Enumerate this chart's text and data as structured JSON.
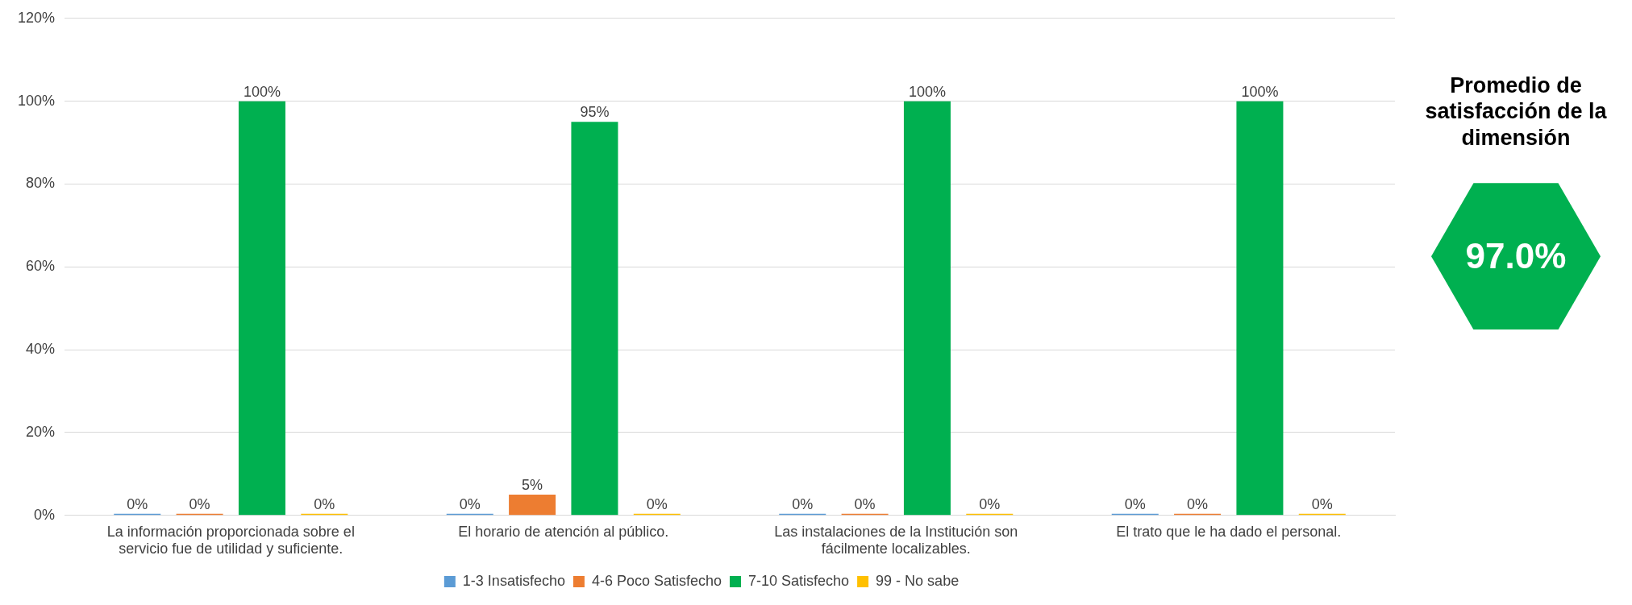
{
  "chart_data": [
    {
      "type": "bar",
      "categories": [
        "La información proporcionada sobre el servicio fue de utilidad y suficiente.",
        "El horario de atención al público.",
        "Las instalaciones de la Institución son fácilmente localizables.",
        "El trato que le ha dado el personal."
      ],
      "series": [
        {
          "name": "1-3 Insatisfecho",
          "color": "#5b9bd5",
          "values": [
            0,
            0,
            0,
            0
          ],
          "value_labels": [
            "0%",
            "0%",
            "0%",
            "0%"
          ]
        },
        {
          "name": "4-6 Poco Satisfecho",
          "color": "#ed7d31",
          "values": [
            0,
            5,
            0,
            0
          ],
          "value_labels": [
            "0%",
            "5%",
            "0%",
            "0%"
          ]
        },
        {
          "name": "7-10 Satisfecho",
          "color": "#00b050",
          "values": [
            100,
            95,
            100,
            100
          ],
          "value_labels": [
            "100%",
            "95%",
            "100%",
            "100%"
          ]
        },
        {
          "name": "99 - No sabe",
          "color": "#ffc000",
          "values": [
            0,
            0,
            0,
            0
          ],
          "value_labels": [
            "0%",
            "0%",
            "0%",
            "0%"
          ]
        }
      ],
      "ylim": [
        0,
        120
      ],
      "yticks": [
        {
          "value": 0,
          "label": "0%"
        },
        {
          "value": 20,
          "label": "20%"
        },
        {
          "value": 40,
          "label": "40%"
        },
        {
          "value": 60,
          "label": "60%"
        },
        {
          "value": 80,
          "label": "80%"
        },
        {
          "value": 100,
          "label": "100%"
        },
        {
          "value": 120,
          "label": "120%"
        }
      ],
      "grid": "y",
      "legend": "bottom"
    },
    {
      "type": "other",
      "title": "Promedio de satisfacción de la dimensión",
      "annotations": [
        "97.0%"
      ]
    }
  ]
}
